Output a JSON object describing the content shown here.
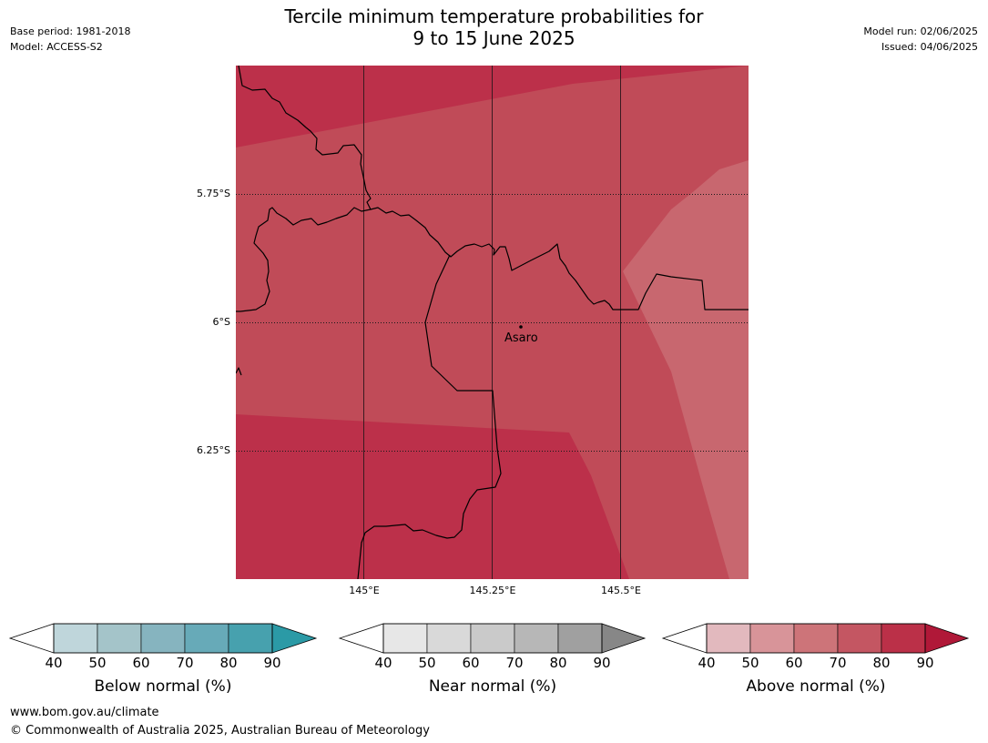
{
  "title_line1": "Tercile minimum temperature probabilities for",
  "title_line2": "9 to 15 June 2025",
  "meta_left": {
    "base_period": "Base period: 1981-2018",
    "model": "Model: ACCESS-S2"
  },
  "meta_right": {
    "model_run": "Model run: 02/06/2025",
    "issued": "Issued: 04/06/2025"
  },
  "map": {
    "lat_labels": [
      "5.75°S",
      "6°S",
      "6.25°S"
    ],
    "lon_labels": [
      "145°E",
      "145.25°E",
      "145.5°E"
    ],
    "place": "Asaro",
    "fill_colors": {
      "above_80_90": "#bc304a",
      "above_70_80": "#c04b58",
      "above_60_70": "#c8676f"
    }
  },
  "colorbars": [
    {
      "label": "Below normal (%)",
      "ticks": [
        "40",
        "50",
        "60",
        "70",
        "80",
        "90"
      ],
      "colors": [
        "#bfd6db",
        "#a4c4c9",
        "#86b4bf",
        "#67aab8",
        "#47a1ae",
        "#2b9aa6"
      ]
    },
    {
      "label": "Near normal (%)",
      "ticks": [
        "40",
        "50",
        "60",
        "70",
        "80",
        "90"
      ],
      "colors": [
        "#e7e7e7",
        "#d9d9d9",
        "#cacaca",
        "#b7b7b7",
        "#a0a0a0",
        "#878787"
      ]
    },
    {
      "label": "Above normal (%)",
      "ticks": [
        "40",
        "50",
        "60",
        "70",
        "80",
        "90"
      ],
      "colors": [
        "#e2b9be",
        "#d89499",
        "#cd7479",
        "#c45662",
        "#bb3048",
        "#b01838"
      ]
    }
  ],
  "footer": {
    "url": "www.bom.gov.au/climate",
    "copyright": "© Commonwealth of Australia 2025, Australian Bureau of Meteorology"
  }
}
